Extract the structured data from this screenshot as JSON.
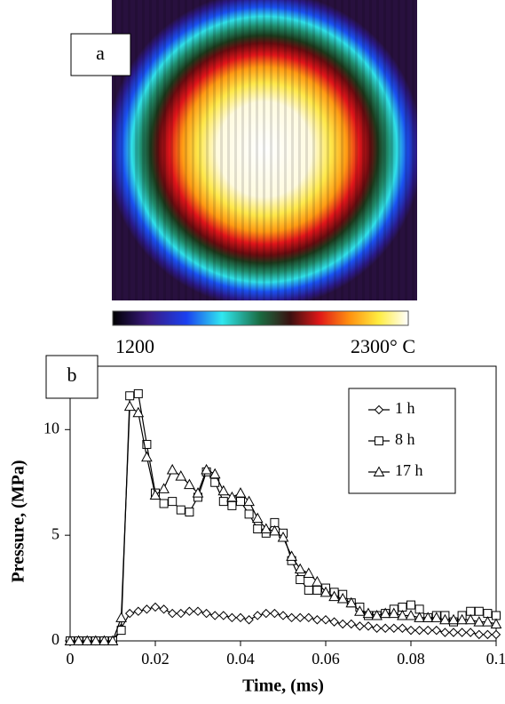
{
  "panel_a": {
    "label": "a",
    "colorbar_low_label": "1200",
    "colorbar_high_label": "2300° C"
  },
  "chart_data": {
    "type": "line",
    "panel_label": "b",
    "x_label": "Time, (ms)",
    "y_label": "Pressure, (MPa)",
    "x": [
      0,
      0.002,
      0.004,
      0.006,
      0.008,
      0.01,
      0.012,
      0.014,
      0.016,
      0.018,
      0.02,
      0.022,
      0.024,
      0.026,
      0.028,
      0.03,
      0.032,
      0.034,
      0.036,
      0.038,
      0.04,
      0.042,
      0.044,
      0.046,
      0.048,
      0.05,
      0.052,
      0.054,
      0.056,
      0.058,
      0.06,
      0.062,
      0.064,
      0.066,
      0.068,
      0.07,
      0.072,
      0.074,
      0.076,
      0.078,
      0.08,
      0.082,
      0.084,
      0.086,
      0.088,
      0.09,
      0.092,
      0.094,
      0.096,
      0.098,
      0.1
    ],
    "series": [
      {
        "name": "1 h",
        "color": "#000000",
        "marker": "diamond",
        "values": [
          0,
          0,
          0,
          0,
          0,
          0,
          0.6,
          1.3,
          1.4,
          1.5,
          1.6,
          1.5,
          1.3,
          1.3,
          1.4,
          1.4,
          1.3,
          1.2,
          1.2,
          1.1,
          1.1,
          1.0,
          1.2,
          1.3,
          1.3,
          1.2,
          1.1,
          1.1,
          1.1,
          1.0,
          1.0,
          0.9,
          0.8,
          0.8,
          0.7,
          0.7,
          0.6,
          0.6,
          0.6,
          0.6,
          0.5,
          0.5,
          0.5,
          0.5,
          0.4,
          0.4,
          0.4,
          0.4,
          0.3,
          0.3,
          0.3
        ]
      },
      {
        "name": "8 h",
        "color": "#000000",
        "marker": "square",
        "values": [
          0,
          0,
          0,
          0,
          0,
          0,
          0.5,
          11.6,
          11.7,
          9.3,
          7.0,
          6.5,
          6.6,
          6.2,
          6.1,
          6.8,
          8.0,
          7.5,
          6.6,
          6.4,
          6.6,
          6.0,
          5.3,
          5.1,
          5.6,
          5.1,
          3.8,
          2.9,
          2.4,
          2.4,
          2.5,
          2.3,
          2.2,
          1.8,
          1.6,
          1.2,
          1.2,
          1.3,
          1.5,
          1.6,
          1.7,
          1.5,
          1.1,
          1.2,
          1.2,
          0.9,
          1.2,
          1.4,
          1.4,
          1.3,
          1.2
        ]
      },
      {
        "name": "17 h",
        "color": "#000000",
        "marker": "triangle",
        "values": [
          0,
          0,
          0,
          0,
          0,
          0,
          1.1,
          11.1,
          10.8,
          8.7,
          6.9,
          7.2,
          8.1,
          7.8,
          7.4,
          7.0,
          8.1,
          7.9,
          7.1,
          6.8,
          7.0,
          6.6,
          5.8,
          5.3,
          5.2,
          4.9,
          4.0,
          3.4,
          3.2,
          2.8,
          2.3,
          2.1,
          2.0,
          1.8,
          1.4,
          1.3,
          1.2,
          1.3,
          1.3,
          1.2,
          1.2,
          1.1,
          1.1,
          1.1,
          1.0,
          1.0,
          1.0,
          1.0,
          0.9,
          0.9,
          0.8
        ]
      }
    ],
    "xlim": [
      0,
      0.1
    ],
    "xticks": [
      0,
      0.02,
      0.04,
      0.06,
      0.08,
      0.1
    ],
    "ylim": [
      0,
      13
    ],
    "yticks": [
      0,
      5,
      10
    ],
    "legend": "upper right",
    "grid": false
  }
}
